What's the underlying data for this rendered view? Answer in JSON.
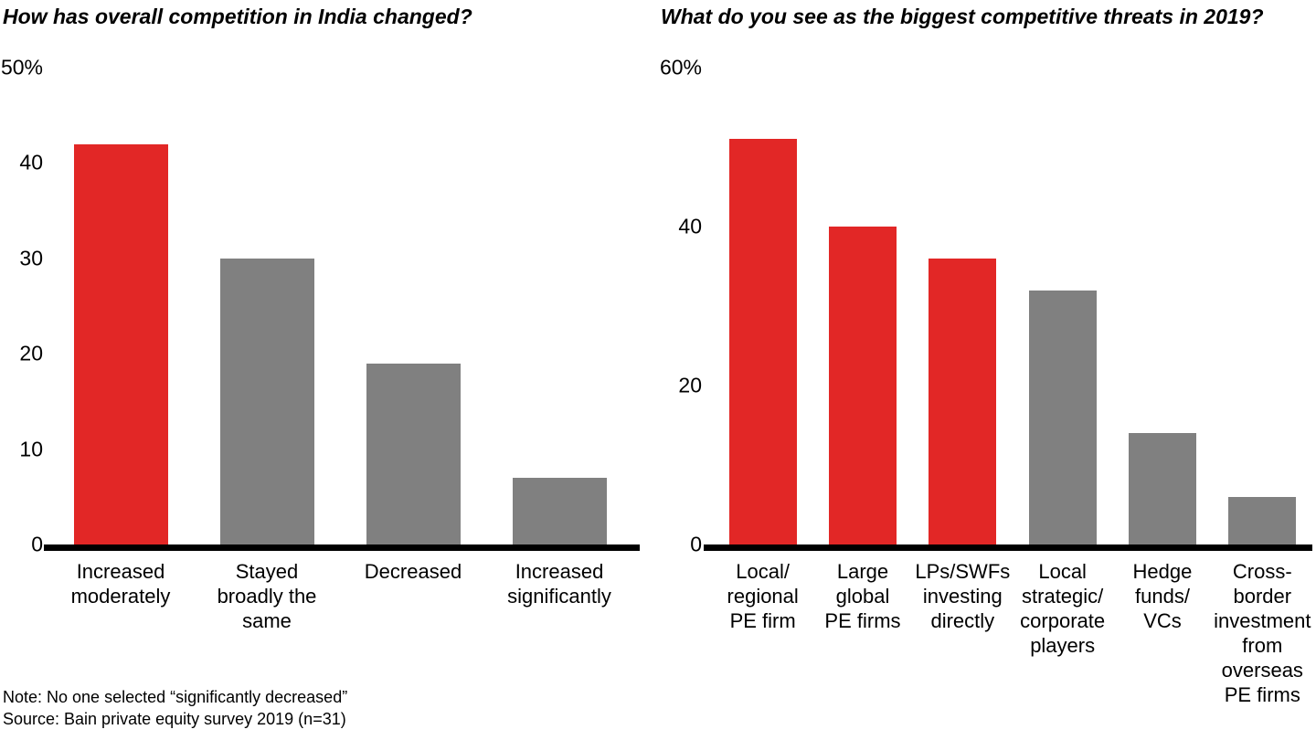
{
  "palette": {
    "highlight_red": "#e22726",
    "bar_gray": "#808080",
    "axis_black": "#000000",
    "background": "#ffffff"
  },
  "footnotes": {
    "note": "Note: No one selected “significantly decreased”",
    "source": "Source: Bain private equity survey 2019 (n=31)"
  },
  "chart_data": [
    {
      "type": "bar",
      "title": "How has overall competition in India changed?",
      "unit": "%",
      "ylim": [
        0,
        50
      ],
      "ymax_label": "50%",
      "ytick_labels": [
        "50%",
        "40",
        "30",
        "20",
        "10",
        "0"
      ],
      "ytick_values": [
        50,
        40,
        30,
        20,
        10,
        0
      ],
      "categories": [
        "Increased\nmoderately",
        "Stayed\nbroadly the\nsame",
        "Decreased",
        "Increased\nsignificantly"
      ],
      "values": [
        42,
        30,
        19,
        7
      ],
      "bar_colors": [
        "#e22726",
        "#808080",
        "#808080",
        "#808080"
      ],
      "grid": false,
      "legend": "none"
    },
    {
      "type": "bar",
      "title": "What do you see as the biggest competitive threats in 2019?",
      "unit": "%",
      "ylim": [
        0,
        60
      ],
      "ymax_label": "60%",
      "ytick_labels": [
        "60%",
        "40",
        "20",
        "0"
      ],
      "ytick_values": [
        60,
        40,
        20,
        0
      ],
      "categories": [
        "Local/\nregional\nPE firm",
        "Large\nglobal\nPE firms",
        "LPs/SWFs\ninvesting\ndirectly",
        "Local\nstrategic/\ncorporate\nplayers",
        "Hedge\nfunds/\nVCs",
        "Cross-\nborder\ninvestment\nfrom\noverseas\nPE firms"
      ],
      "values": [
        51,
        40,
        36,
        32,
        14,
        6
      ],
      "bar_colors": [
        "#e22726",
        "#e22726",
        "#e22726",
        "#808080",
        "#808080",
        "#808080"
      ],
      "grid": false,
      "legend": "none"
    }
  ]
}
